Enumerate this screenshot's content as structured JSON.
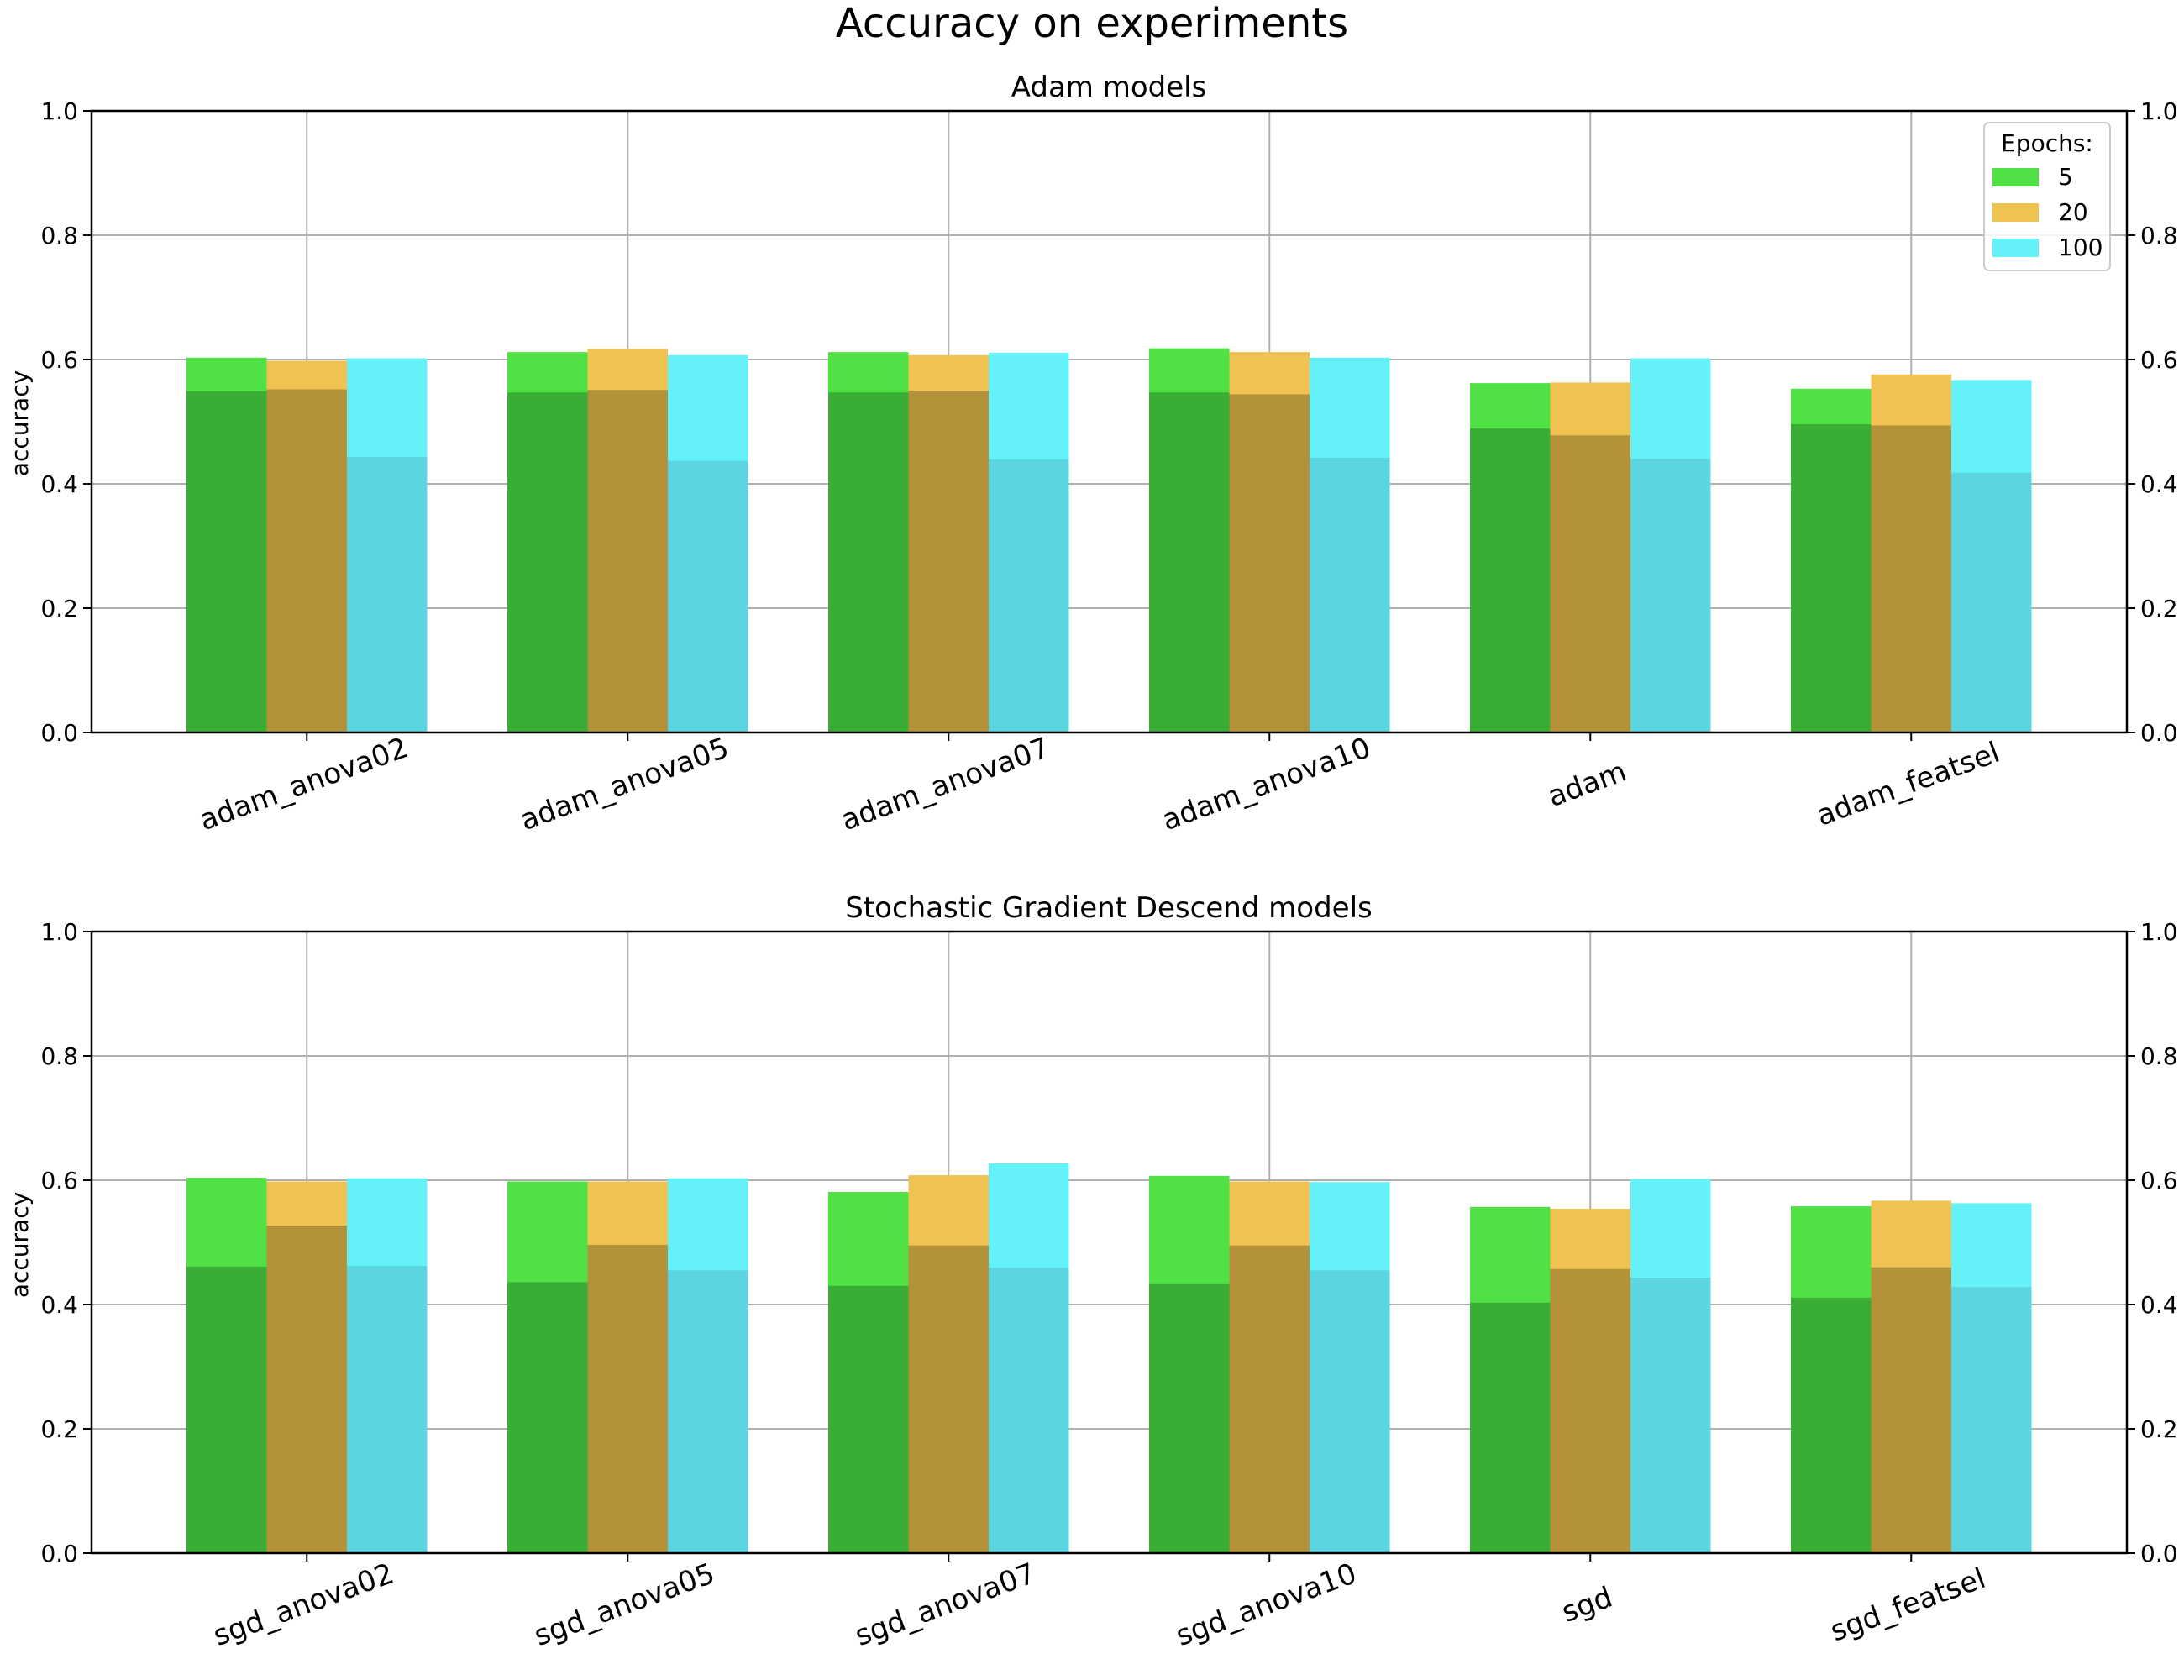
{
  "chart_data": [
    {
      "type": "bar",
      "suptitle": "Accuracy on experiments",
      "title": "Adam models",
      "ylabel": "accuracy",
      "xlabel": "",
      "ylim": [
        0,
        1
      ],
      "yticks": [
        "0.0",
        "0.2",
        "0.4",
        "0.6",
        "0.8",
        "1.0"
      ],
      "grid": true,
      "right_axis_ticks": true,
      "categories": [
        "adam_anova02",
        "adam_anova05",
        "adam_anova07",
        "adam_anova10",
        "adam",
        "adam_featsel"
      ],
      "legend": {
        "title": "Epochs:",
        "placement": "top-right"
      },
      "series": [
        {
          "name": "5",
          "color_light": "#50e244",
          "color_dark": "#3aad35",
          "values_top": [
            0.603,
            0.612,
            0.612,
            0.618,
            0.562,
            0.553
          ],
          "values_base": [
            0.549,
            0.547,
            0.547,
            0.547,
            0.489,
            0.496
          ]
        },
        {
          "name": "20",
          "color_light": "#f0c251",
          "color_dark": "#b3923a",
          "values_top": [
            0.598,
            0.617,
            0.607,
            0.612,
            0.563,
            0.576
          ],
          "values_base": [
            0.552,
            0.551,
            0.55,
            0.544,
            0.478,
            0.494
          ]
        },
        {
          "name": "100",
          "color_light": "#64f2f8",
          "color_dark": "#5bd6e0",
          "values_top": [
            0.602,
            0.607,
            0.611,
            0.603,
            0.602,
            0.567
          ],
          "values_base": [
            0.443,
            0.437,
            0.439,
            0.442,
            0.44,
            0.418
          ]
        }
      ]
    },
    {
      "type": "bar",
      "title": "Stochastic Gradient Descend models",
      "ylabel": "accuracy",
      "xlabel": "",
      "ylim": [
        0,
        1
      ],
      "yticks": [
        "0.0",
        "0.2",
        "0.4",
        "0.6",
        "0.8",
        "1.0"
      ],
      "grid": true,
      "right_axis_ticks": true,
      "categories": [
        "sgd_anova02",
        "sgd_anova05",
        "sgd_anova07",
        "sgd_anova10",
        "sgd",
        "sgd_featsel"
      ],
      "series": [
        {
          "name": "5",
          "color_light": "#50e244",
          "color_dark": "#3aad35",
          "values_top": [
            0.604,
            0.598,
            0.581,
            0.607,
            0.557,
            0.558
          ],
          "values_base": [
            0.461,
            0.436,
            0.43,
            0.434,
            0.403,
            0.411
          ]
        },
        {
          "name": "20",
          "color_light": "#f0c251",
          "color_dark": "#b3923a",
          "values_top": [
            0.598,
            0.598,
            0.608,
            0.598,
            0.554,
            0.567
          ],
          "values_base": [
            0.527,
            0.496,
            0.495,
            0.495,
            0.457,
            0.46
          ]
        },
        {
          "name": "100",
          "color_light": "#64f2f8",
          "color_dark": "#5bd6e0",
          "values_top": [
            0.603,
            0.603,
            0.627,
            0.597,
            0.602,
            0.563
          ],
          "values_base": [
            0.462,
            0.455,
            0.459,
            0.455,
            0.443,
            0.428
          ]
        }
      ]
    }
  ]
}
